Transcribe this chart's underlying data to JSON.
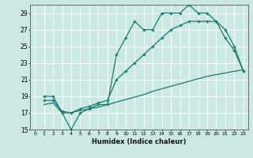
{
  "xlabel": "Humidex (Indice chaleur)",
  "bg_color": "#cce8e5",
  "line_color": "#1a7a6e",
  "grid_color": "#ffffff",
  "xlim": [
    -0.5,
    23.5
  ],
  "ylim": [
    15,
    30
  ],
  "xticks": [
    0,
    1,
    2,
    3,
    4,
    5,
    6,
    7,
    8,
    9,
    10,
    11,
    12,
    13,
    14,
    15,
    16,
    17,
    18,
    19,
    20,
    21,
    22,
    23
  ],
  "yticks": [
    15,
    17,
    19,
    21,
    23,
    25,
    27,
    29
  ],
  "line1_x": [
    1,
    2,
    3,
    4,
    5,
    6,
    7,
    8,
    9,
    10,
    11,
    12,
    13,
    14,
    15,
    16,
    17,
    18,
    19,
    20,
    21,
    22,
    23
  ],
  "line1_y": [
    19,
    19,
    17,
    15,
    17,
    17.5,
    18,
    18,
    24,
    26,
    28,
    27,
    27,
    29,
    29,
    29,
    30,
    29,
    29,
    28,
    26,
    24.5,
    22
  ],
  "line2_x": [
    1,
    2,
    3,
    4,
    5,
    6,
    7,
    8,
    9,
    10,
    11,
    12,
    13,
    14,
    15,
    16,
    17,
    18,
    19,
    20,
    21,
    22,
    23
  ],
  "line2_y": [
    18.5,
    18.5,
    17.2,
    17,
    17.5,
    17.8,
    18.2,
    18.5,
    21,
    22,
    23,
    24,
    25,
    26,
    27,
    27.5,
    28,
    28,
    28,
    28,
    27,
    25,
    22
  ],
  "line3_x": [
    1,
    2,
    3,
    4,
    5,
    6,
    7,
    8,
    9,
    10,
    11,
    12,
    13,
    14,
    15,
    16,
    17,
    18,
    19,
    20,
    21,
    22,
    23
  ],
  "line3_y": [
    18.0,
    18.2,
    17.0,
    17.0,
    17.3,
    17.5,
    17.7,
    18.0,
    18.3,
    18.6,
    18.9,
    19.2,
    19.6,
    19.9,
    20.2,
    20.5,
    20.8,
    21.1,
    21.4,
    21.6,
    21.8,
    22.0,
    22.2
  ]
}
